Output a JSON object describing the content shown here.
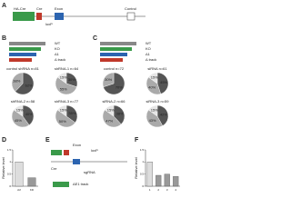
{
  "panels": {
    "a": {
      "letter": "A",
      "labels": [
        "HA-Cre",
        "Cre",
        "loxP",
        "Exon",
        "Control"
      ]
    },
    "b": {
      "letter": "B",
      "legend": [
        "WT",
        "KO",
        "Δ1",
        "Δ track"
      ],
      "pies": [
        {
          "title": "control shRNA n=81",
          "values": [
            62,
            38
          ],
          "value_labels": [
            "62%",
            "38%"
          ]
        },
        {
          "title": "shRNA-1 n=64",
          "values": [
            30,
            55,
            15
          ],
          "value_labels": [
            "30%",
            "55%",
            "15%"
          ]
        },
        {
          "title": "shRNA-2 n=58",
          "values": [
            40,
            45,
            15
          ],
          "value_labels": [
            "40%",
            "45%",
            "15%"
          ]
        },
        {
          "title": "shRNA-3 n=77",
          "values": [
            35,
            50,
            15
          ],
          "value_labels": [
            "35%",
            "50%",
            "15%"
          ]
        }
      ]
    },
    "c": {
      "letter": "C",
      "legend": [
        "WT",
        "KO",
        "Δ1",
        "Δ track"
      ],
      "pies": [
        {
          "title": "control n=72",
          "values": [
            70,
            30
          ],
          "value_labels": [
            "70%",
            "30%"
          ]
        },
        {
          "title": "siRNA n=61",
          "values": [
            45,
            40,
            15
          ],
          "value_labels": [
            "45%",
            "40%",
            "15%"
          ]
        },
        {
          "title": "siRNA-2 n=66",
          "values": [
            38,
            47,
            15
          ],
          "value_labels": [
            "38%",
            "47%",
            "15%"
          ]
        },
        {
          "title": "siRNA-3 n=59",
          "values": [
            42,
            43,
            15
          ],
          "value_labels": [
            "42%",
            "43%",
            "15%"
          ]
        }
      ]
    },
    "d": {
      "letter": "D",
      "ylabel": "Relative level",
      "categories": [
        "ctrl",
        "KD"
      ],
      "values": [
        1,
        0.35
      ],
      "ylim": [
        0,
        1.5
      ],
      "yticks": [
        0,
        0.5,
        1,
        1.5
      ]
    },
    "e": {
      "letter": "E",
      "labels": [
        "Exon",
        "loxP",
        "Cre",
        "sgRNA",
        "ΔE1 track"
      ]
    },
    "f": {
      "letter": "F",
      "ylabel": "Relative level",
      "categories": [
        "1",
        "2",
        "3",
        "4"
      ],
      "values": [
        1,
        0.45,
        0.5,
        0.4
      ],
      "ylim": [
        0,
        1.5
      ],
      "yticks": [
        0,
        0.5,
        1,
        1.5
      ]
    }
  }
}
